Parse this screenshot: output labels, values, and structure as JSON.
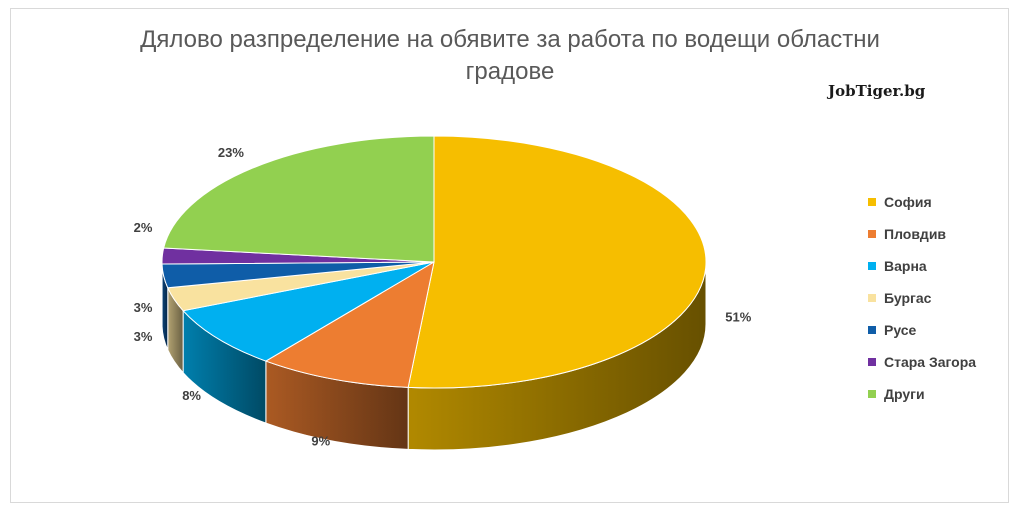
{
  "chart_data": {
    "type": "pie",
    "title": "Дялово разпределение на обявите за работа по водещи областни градове",
    "source_logo": "JobTiger.bg",
    "legend_position": "right",
    "slices": [
      {
        "name": "София",
        "value": 51,
        "label": "51%",
        "color": "#F6BE00"
      },
      {
        "name": "Пловдив",
        "value": 9,
        "label": "9%",
        "color": "#ED7D31"
      },
      {
        "name": "Варна",
        "value": 8,
        "label": "8%",
        "color": "#00B0F0"
      },
      {
        "name": "Бургас",
        "value": 3,
        "label": "3%",
        "color": "#F9E29F"
      },
      {
        "name": "Русе",
        "value": 3,
        "label": "3%",
        "color": "#0F5DA8"
      },
      {
        "name": "Стара Загора",
        "value": 2,
        "label": "2%",
        "color": "#7030A0"
      },
      {
        "name": "Други",
        "value": 23,
        "label": "23%",
        "color": "#92D050"
      }
    ]
  },
  "title_lines": [
    "Дялово разпределение на обявите за работа по водещи областни",
    "градове"
  ]
}
